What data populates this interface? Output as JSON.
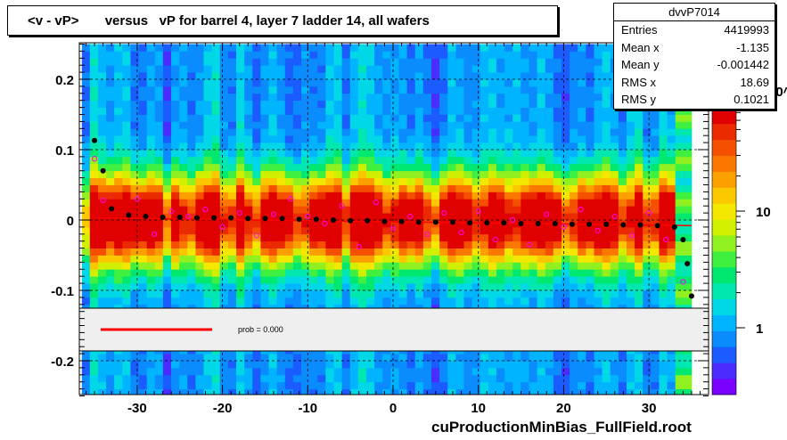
{
  "title": "<v - vP>       versus   vP for barrel 4, layer 7 ladder 14, all wafers",
  "stats": {
    "name": "dvvP7014",
    "rows": [
      {
        "label": "Entries",
        "value": "4419993"
      },
      {
        "label": "Mean x",
        "value": "-1.135"
      },
      {
        "label": "Mean y",
        "value": "-0.001442"
      },
      {
        "label": "RMS x",
        "value": "18.69"
      },
      {
        "label": "RMS y",
        "value": "0.1021"
      }
    ]
  },
  "footer": "cuProductionMinBias_FullField.root",
  "fit_legend": {
    "text": "prob = 0.000",
    "line_color": "#ff0000"
  },
  "colors": {
    "black_markers": "#000000",
    "open_markers": "#ff00ff",
    "fit_line": "#ff0000"
  },
  "chart_data": {
    "type": "heatmap",
    "title": "<v - vP>       versus   vP for barrel 4, layer 7 ladder 14, all wafers",
    "xlim": [
      -37,
      37
    ],
    "ylim": [
      -0.25,
      0.25
    ],
    "x_ticks": [
      -30,
      -20,
      -10,
      0,
      10,
      20,
      30
    ],
    "y_ticks": [
      -0.2,
      -0.1,
      0,
      0.1,
      0.2
    ],
    "y_tick_labels": [
      "-0.2",
      "-0.1",
      "0",
      "0.1",
      "0.2"
    ],
    "grid": true,
    "colorbar_ticks": [
      {
        "label": "1",
        "value": 1
      },
      {
        "label": "10",
        "value": 10
      },
      {
        "label": "10^2",
        "value": 100
      }
    ],
    "colorbar_scale": "log",
    "profile_black": {
      "x": [
        -35,
        -34,
        -33,
        -31,
        -29,
        -27,
        -25,
        -23,
        -21,
        -19,
        -17,
        -15,
        -13,
        -11,
        -9,
        -7,
        -5,
        -3,
        -1,
        1,
        3,
        5,
        7,
        9,
        11,
        13,
        15,
        17,
        19,
        21,
        23,
        25,
        27,
        29,
        31,
        33,
        34,
        34.5,
        35
      ],
      "y": [
        0.113,
        0.07,
        0.016,
        0.007,
        0.005,
        0.004,
        0.004,
        0.003,
        0.003,
        0.003,
        0.002,
        0.002,
        0.002,
        0.001,
        0.001,
        0.0,
        -0.001,
        -0.001,
        -0.002,
        -0.002,
        -0.003,
        -0.003,
        -0.003,
        -0.004,
        -0.004,
        -0.004,
        -0.005,
        -0.005,
        -0.005,
        -0.006,
        -0.006,
        -0.006,
        -0.007,
        -0.007,
        -0.008,
        -0.01,
        -0.028,
        -0.062,
        -0.108
      ]
    },
    "profile_open": {
      "x": [
        -35,
        -34,
        -30,
        -28,
        -26,
        -24,
        -22,
        -20,
        -18,
        -16,
        -14,
        -12,
        -10,
        -8,
        -6,
        -4,
        -2,
        0,
        2,
        4,
        6,
        8,
        10,
        12,
        14,
        16,
        18,
        20,
        22,
        24,
        26,
        28,
        30,
        32,
        34
      ],
      "y": [
        0.087,
        0.028,
        0.03,
        -0.02,
        0.012,
        0.005,
        0.015,
        -0.01,
        0.01,
        -0.022,
        0.008,
        0.03,
        0.005,
        -0.005,
        0.02,
        -0.038,
        0.025,
        -0.012,
        0.005,
        -0.02,
        0.01,
        -0.018,
        0.012,
        -0.028,
        0.0,
        -0.035,
        0.008,
        -0.01,
        0.015,
        -0.015,
        0.005,
        -0.022,
        0.01,
        -0.028,
        -0.088
      ]
    },
    "fit": {
      "x": [
        -35,
        35
      ],
      "y": [
        0.003,
        -0.008
      ]
    }
  }
}
